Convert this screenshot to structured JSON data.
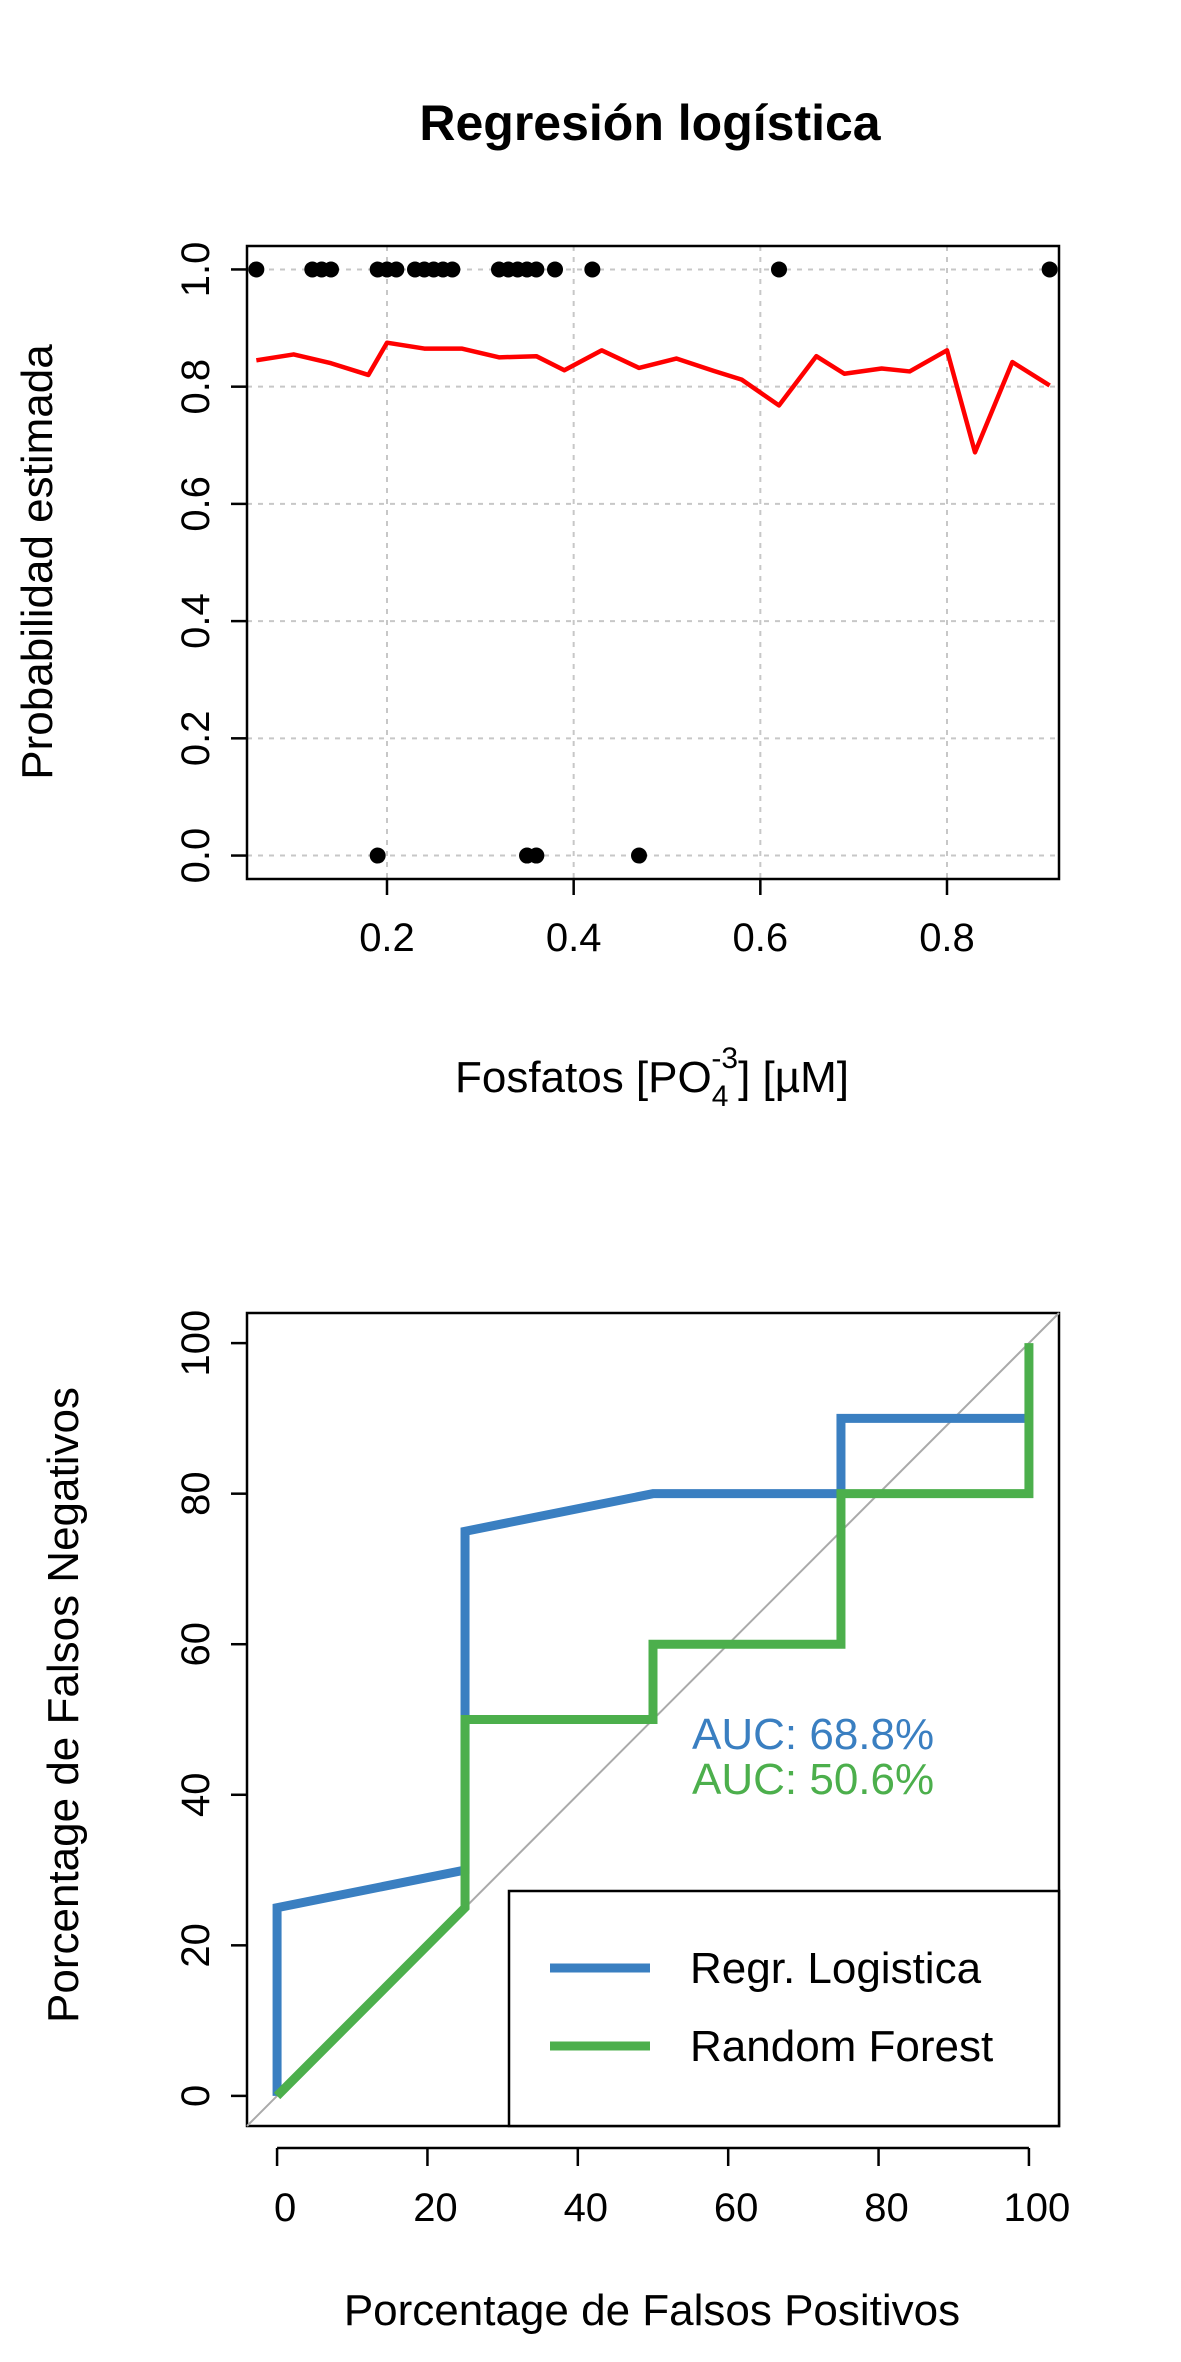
{
  "chart_data": [
    {
      "type": "scatter",
      "title": "Regresión logística",
      "xlabel_main": "Fosfatos [PO",
      "xlabel_sub": "4",
      "xlabel_sup": "-3",
      "xlabel_rest": "] [µM]",
      "ylabel": "Probabilidad estimada",
      "xlim": [
        0.05,
        0.92
      ],
      "ylim": [
        -0.04,
        1.04
      ],
      "x_ticks": [
        0.2,
        0.4,
        0.6,
        0.8
      ],
      "x_tick_labels": [
        "0.2",
        "0.4",
        "0.6",
        "0.8"
      ],
      "y_ticks": [
        0.0,
        0.2,
        0.4,
        0.6,
        0.8,
        1.0
      ],
      "y_tick_labels": [
        "0.0",
        "0.2",
        "0.4",
        "0.6",
        "0.8",
        "1.0"
      ],
      "grid": true,
      "colors": {
        "points": "#000000",
        "line": "#ff0000"
      },
      "points": {
        "x": [
          0.06,
          0.12,
          0.13,
          0.14,
          0.19,
          0.2,
          0.21,
          0.23,
          0.24,
          0.25,
          0.26,
          0.27,
          0.32,
          0.33,
          0.34,
          0.35,
          0.36,
          0.38,
          0.42,
          0.62,
          0.91,
          0.19,
          0.35,
          0.36,
          0.47
        ],
        "y": [
          1,
          1,
          1,
          1,
          1,
          1,
          1,
          1,
          1,
          1,
          1,
          1,
          1,
          1,
          1,
          1,
          1,
          1,
          1,
          1,
          1,
          0,
          0,
          0,
          0
        ]
      },
      "line": {
        "x": [
          0.06,
          0.1,
          0.14,
          0.18,
          0.2,
          0.24,
          0.28,
          0.32,
          0.36,
          0.39,
          0.43,
          0.47,
          0.51,
          0.55,
          0.58,
          0.62,
          0.66,
          0.69,
          0.73,
          0.76,
          0.8,
          0.83,
          0.87,
          0.91
        ],
        "y": [
          0.845,
          0.855,
          0.84,
          0.82,
          0.875,
          0.865,
          0.865,
          0.85,
          0.852,
          0.828,
          0.862,
          0.832,
          0.848,
          0.827,
          0.812,
          0.768,
          0.852,
          0.822,
          0.831,
          0.826,
          0.862,
          0.688,
          0.842,
          0.802
        ]
      }
    },
    {
      "type": "line",
      "title": "",
      "xlabel": "Porcentage de Falsos Positivos",
      "ylabel": "Porcentage de Falsos Negativos",
      "xlim": [
        -4,
        104
      ],
      "ylim": [
        -4,
        104
      ],
      "x_ticks": [
        0,
        20,
        40,
        60,
        80,
        100
      ],
      "x_tick_labels": [
        "0",
        "20",
        "40",
        "60",
        "80",
        "100"
      ],
      "y_ticks": [
        0,
        20,
        40,
        60,
        80,
        100
      ],
      "y_tick_labels": [
        "0",
        "20",
        "40",
        "60",
        "80",
        "100"
      ],
      "grid": false,
      "diagonal_color": "#aaaaaa",
      "series": [
        {
          "name": "Regr. Logistica",
          "color": "#3a7fc1",
          "x": [
            0,
            0,
            25,
            25,
            50,
            75,
            75,
            100
          ],
          "y": [
            0,
            25,
            30,
            75,
            80,
            80,
            90,
            90
          ]
        },
        {
          "name": "Random Forest",
          "color": "#4caf4c",
          "x": [
            0,
            25,
            25,
            50,
            50,
            75,
            75,
            100,
            100
          ],
          "y": [
            0,
            25,
            50,
            50,
            60,
            60,
            80,
            80,
            100
          ]
        }
      ],
      "annotations": [
        {
          "text": "AUC: 68.8%",
          "color": "#3a7fc1"
        },
        {
          "text": "AUC: 50.6%",
          "color": "#4caf4c"
        }
      ],
      "legend": {
        "position": "bottom-right"
      }
    }
  ]
}
